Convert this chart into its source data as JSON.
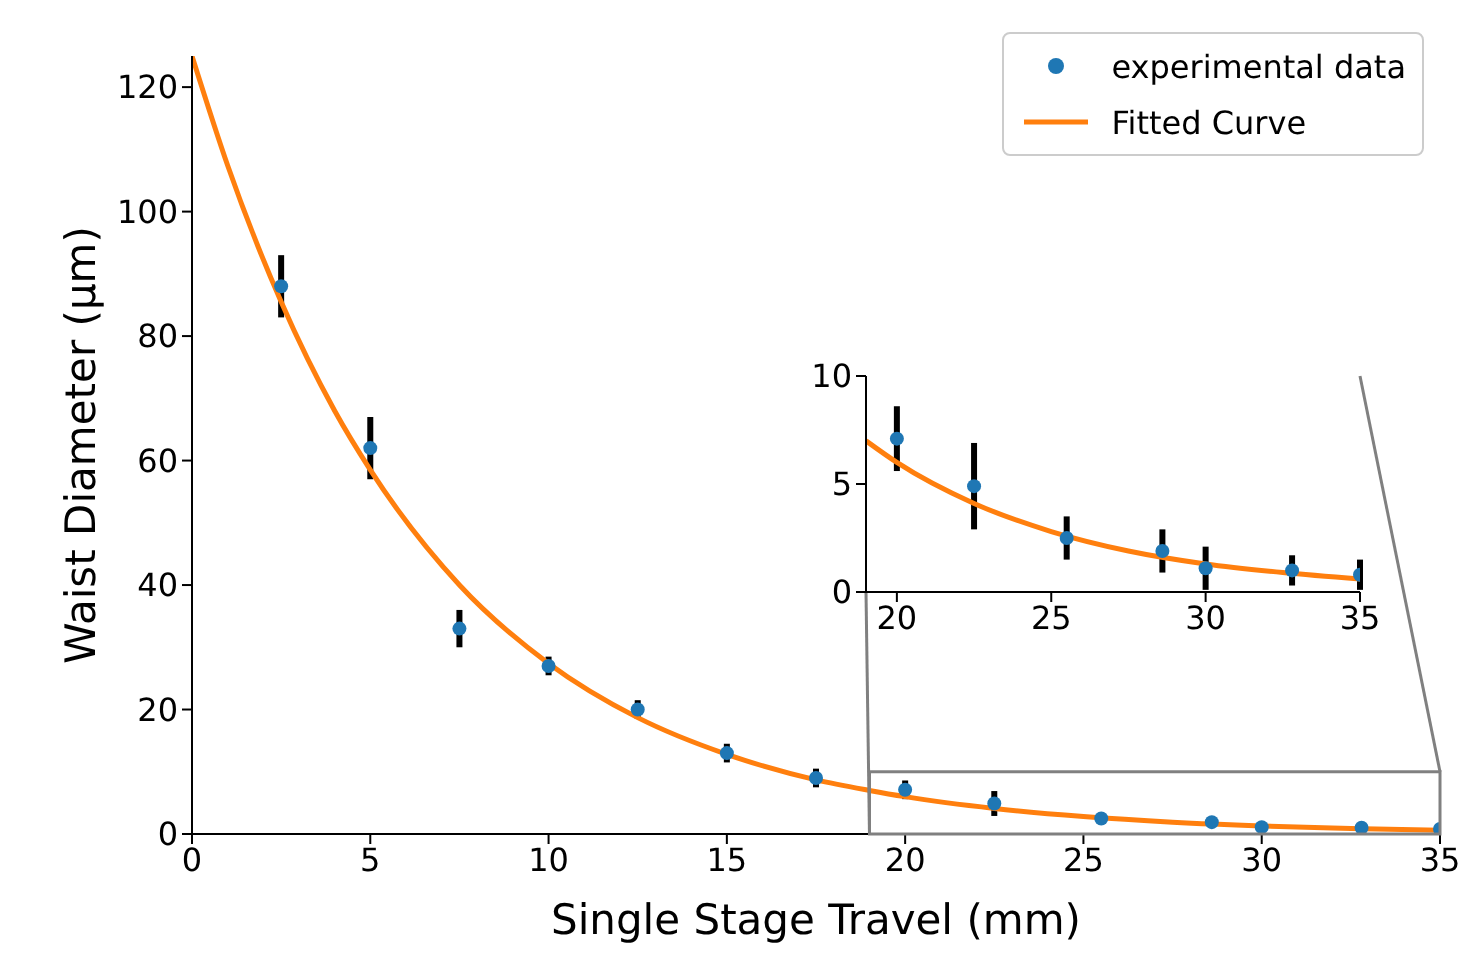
{
  "chart_data": [
    {
      "type": "scatter",
      "xlabel": "Single Stage Travel (mm)",
      "ylabel": "Waist Diameter (μm)",
      "xlim": [
        0,
        35
      ],
      "xticks": [
        0,
        5,
        10,
        15,
        20,
        25,
        30,
        35
      ],
      "ylim": [
        0,
        125
      ],
      "yticks": [
        0,
        20,
        40,
        60,
        80,
        100,
        120
      ],
      "legend": "top right",
      "series": [
        {
          "name": "experimental data",
          "type": "scatter",
          "marker": "circle",
          "color": "#1f77b4",
          "x": [
            2.5,
            5,
            7.5,
            10,
            12.5,
            15,
            17.5,
            20,
            22.5,
            25.5,
            28.6,
            30,
            32.8,
            35
          ],
          "values": [
            88,
            62,
            33,
            27,
            20,
            13,
            9,
            7.1,
            4.9,
            2.5,
            1.9,
            1.1,
            1.0,
            0.8
          ],
          "errors": [
            5,
            5,
            3,
            1.5,
            1.5,
            1.5,
            1.5,
            1.5,
            2,
            null,
            null,
            null,
            null,
            null
          ]
        },
        {
          "name": "Fitted Curve",
          "type": "line",
          "marker": "none",
          "color": "#ff7f0e",
          "x": [
            0,
            1,
            2.5,
            4,
            5,
            7.5,
            10,
            12.5,
            15,
            17.5,
            19,
            20,
            22.5,
            25,
            27.5,
            30,
            32.5,
            35
          ],
          "values": [
            125,
            107.4,
            85.5,
            68,
            58.5,
            40,
            27.4,
            18.7,
            12.8,
            8.7,
            7.0,
            6.0,
            4.1,
            2.8,
            1.9,
            1.3,
            0.9,
            0.6
          ]
        }
      ]
    },
    {
      "type": "scatter",
      "xlim": [
        19,
        35
      ],
      "xticks": [
        20,
        25,
        30,
        35
      ],
      "ylim": [
        0,
        10
      ],
      "yticks": [
        0,
        5,
        10
      ],
      "series": [
        {
          "type": "scatter",
          "marker": "circle",
          "color": "#1f77b4",
          "x": [
            20,
            22.5,
            25.5,
            28.6,
            30,
            32.8,
            35
          ],
          "values": [
            7.1,
            4.9,
            2.5,
            1.9,
            1.1,
            1.0,
            0.8
          ],
          "errors": [
            1.5,
            2,
            1,
            1,
            1,
            0.7,
            0.7
          ]
        },
        {
          "type": "line",
          "marker": "none",
          "color": "#ff7f0e",
          "x": [
            19,
            20,
            22.5,
            25,
            27.5,
            30,
            32.5,
            35
          ],
          "values": [
            7.0,
            6.0,
            4.1,
            2.8,
            1.9,
            1.3,
            0.9,
            0.6
          ]
        }
      ]
    }
  ]
}
